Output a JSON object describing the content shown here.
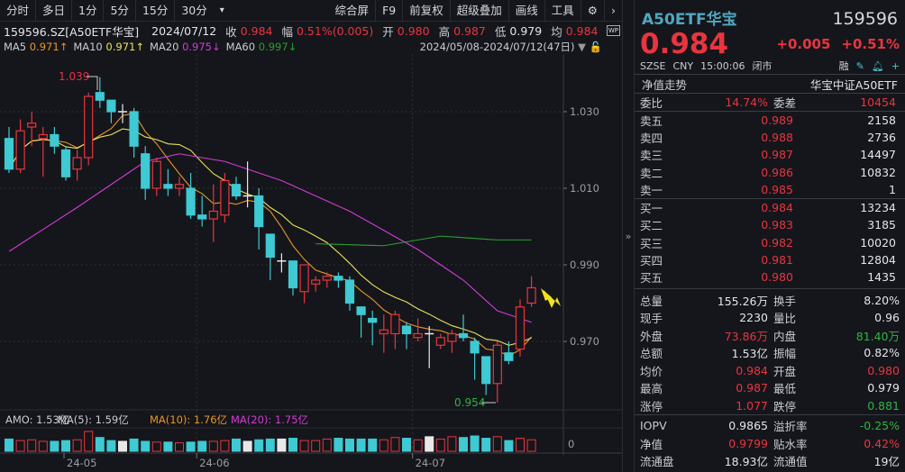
{
  "toolbar": {
    "left": [
      "分时",
      "多日",
      "1分",
      "5分",
      "15分",
      "30分"
    ],
    "dropdown": "▾",
    "right": [
      "综合屏",
      "F9",
      "前复权",
      "超级叠加",
      "画线",
      "工具"
    ]
  },
  "info": {
    "code": "159596.SZ[A50ETF华宝]",
    "date": "2024/07/12",
    "close_label": "收",
    "close": "0.984",
    "chg_label": "幅",
    "chg": "0.51%(0.005)",
    "open_label": "开",
    "open": "0.980",
    "high_label": "高",
    "high": "0.987",
    "low_label": "低",
    "low": "0.979",
    "avg_label": "均",
    "avg": "0.984"
  },
  "ma": {
    "ma5": "MA5",
    "ma5_val": "0.971↑",
    "ma10": "MA10",
    "ma10_val": "0.971↑",
    "ma20": "MA20",
    "ma20_val": "0.975↓",
    "ma60": "MA60",
    "ma60_val": "0.997↓",
    "range": "2024/05/08-2024/07/12(47日)"
  },
  "volume_header": {
    "amo": "AMO: 1.53亿",
    "ma5": "MA(5): 1.59亿",
    "ma10": "MA(10): 1.76亿",
    "ma20": "MA(20): 1.75亿",
    "axis_zero": "0"
  },
  "colors": {
    "up": "#e8353f",
    "down": "#3fc9d3",
    "ma5": "#e8962a",
    "ma10": "#e8e25c",
    "ma20": "#d23bd6",
    "ma60": "#2e9e32",
    "bg": "#15161b"
  },
  "chart_data": {
    "type": "candlestick",
    "y_ticks": [
      "1.030",
      "1.010",
      "0.990",
      "0.970"
    ],
    "x_ticks": [
      "24-05",
      "24-06",
      "24-07"
    ],
    "high_annotation": "1.039",
    "low_annotation": "0.954",
    "ohlc": [
      [
        1.023,
        1.026,
        1.014,
        1.015
      ],
      [
        1.015,
        1.028,
        1.014,
        1.025
      ],
      [
        1.026,
        1.03,
        1.021,
        1.027
      ],
      [
        1.023,
        1.026,
        1.013,
        1.024
      ],
      [
        1.024,
        1.026,
        1.019,
        1.021
      ],
      [
        1.02,
        1.021,
        1.012,
        1.013
      ],
      [
        1.015,
        1.02,
        1.012,
        1.018
      ],
      [
        1.018,
        1.035,
        1.016,
        1.034
      ],
      [
        1.035,
        1.039,
        1.031,
        1.033
      ],
      [
        1.033,
        1.033,
        1.027,
        1.03
      ],
      [
        1.03,
        1.032,
        1.027,
        1.03
      ],
      [
        1.03,
        1.031,
        1.018,
        1.021
      ],
      [
        1.019,
        1.021,
        1.007,
        1.01
      ],
      [
        1.01,
        1.018,
        1.008,
        1.017
      ],
      [
        1.011,
        1.015,
        1.008,
        1.01
      ],
      [
        1.01,
        1.013,
        1.008,
        1.011
      ],
      [
        1.01,
        1.014,
        1.002,
        1.003
      ],
      [
        1.003,
        1.008,
        1.0,
        1.002
      ],
      [
        1.002,
        1.011,
        0.996,
        1.004
      ],
      [
        1.003,
        1.014,
        1.001,
        1.012
      ],
      [
        1.011,
        1.013,
        1.007,
        1.008
      ],
      [
        1.008,
        1.017,
        1.005,
        1.008
      ],
      [
        1.008,
        1.01,
        0.994,
        1.0
      ],
      [
        0.998,
        0.998,
        0.986,
        0.992
      ],
      [
        0.991,
        0.993,
        0.988,
        0.991
      ],
      [
        0.991,
        0.991,
        0.982,
        0.984
      ],
      [
        0.983,
        0.99,
        0.98,
        0.99
      ],
      [
        0.985,
        0.987,
        0.983,
        0.986
      ],
      [
        0.986,
        0.988,
        0.984,
        0.987
      ],
      [
        0.987,
        0.988,
        0.984,
        0.986
      ],
      [
        0.986,
        0.987,
        0.978,
        0.98
      ],
      [
        0.979,
        0.979,
        0.971,
        0.977
      ],
      [
        0.976,
        0.978,
        0.969,
        0.975
      ],
      [
        0.972,
        0.977,
        0.967,
        0.973
      ],
      [
        0.972,
        0.978,
        0.968,
        0.977
      ],
      [
        0.974,
        0.975,
        0.968,
        0.972
      ],
      [
        0.971,
        0.976,
        0.97,
        0.972
      ],
      [
        0.972,
        0.974,
        0.963,
        0.972
      ],
      [
        0.969,
        0.972,
        0.968,
        0.971
      ],
      [
        0.97,
        0.973,
        0.967,
        0.972
      ],
      [
        0.972,
        0.977,
        0.97,
        0.971
      ],
      [
        0.97,
        0.971,
        0.96,
        0.967
      ],
      [
        0.966,
        0.966,
        0.956,
        0.959
      ],
      [
        0.959,
        0.97,
        0.954,
        0.969
      ],
      [
        0.967,
        0.97,
        0.964,
        0.965
      ],
      [
        0.968,
        0.981,
        0.966,
        0.979
      ],
      [
        0.98,
        0.987,
        0.979,
        0.984
      ]
    ],
    "ma20_points": [
      [
        0,
        0.9935
      ],
      [
        6,
        1.005
      ],
      [
        12,
        1.017
      ],
      [
        15,
        1.019
      ],
      [
        19,
        1.017
      ],
      [
        24,
        1.012
      ],
      [
        30,
        1.004
      ],
      [
        36,
        0.994
      ],
      [
        40,
        0.986
      ],
      [
        43,
        0.978
      ],
      [
        46,
        0.975
      ]
    ],
    "ma60_points": [
      [
        27,
        0.9955
      ],
      [
        33,
        0.995
      ],
      [
        38,
        0.9975
      ],
      [
        43,
        0.9965
      ],
      [
        46,
        0.9965
      ]
    ],
    "volume_yi": [
      1.6,
      1.4,
      1.5,
      1.3,
      1.3,
      1.4,
      1.5,
      2.6,
      1.8,
      1.4,
      1.3,
      1.6,
      1.3,
      1.2,
      1.2,
      1.1,
      1.2,
      1.3,
      1.3,
      1.4,
      1.6,
      1.3,
      1.5,
      1.6,
      1.6,
      1.7,
      1.4,
      1.4,
      1.6,
      1.7,
      1.6,
      1.6,
      1.6,
      1.5,
      1.8,
      1.7,
      1.5,
      1.9,
      1.6,
      1.9,
      1.8,
      2.0,
      1.7,
      1.9,
      1.4,
      1.7,
      1.5
    ]
  },
  "panel": {
    "name": "A50ETF华宝",
    "code": "159596",
    "price": "0.984",
    "change": "+0.005",
    "change_pct": "+0.51%",
    "exchange": "SZSE",
    "currency": "CNY",
    "time": "15:00:06",
    "status": "闭市",
    "margin": "融",
    "nav_trend": "净值走势",
    "index_name": "华宝中证A50ETF",
    "weibi_label": "委比",
    "weibi": "14.74%",
    "weicha_label": "委差",
    "weicha": "10454",
    "asks": [
      {
        "label": "卖五",
        "price": "0.989",
        "qty": "2158"
      },
      {
        "label": "卖四",
        "price": "0.988",
        "qty": "2736"
      },
      {
        "label": "卖三",
        "price": "0.987",
        "qty": "14497"
      },
      {
        "label": "卖二",
        "price": "0.986",
        "qty": "10832"
      },
      {
        "label": "卖一",
        "price": "0.985",
        "qty": "1"
      }
    ],
    "bids": [
      {
        "label": "买一",
        "price": "0.984",
        "qty": "13234"
      },
      {
        "label": "买二",
        "price": "0.983",
        "qty": "3185"
      },
      {
        "label": "买三",
        "price": "0.982",
        "qty": "10020"
      },
      {
        "label": "买四",
        "price": "0.981",
        "qty": "12804"
      },
      {
        "label": "买五",
        "price": "0.980",
        "qty": "1435"
      }
    ],
    "stats": [
      {
        "l1": "总量",
        "v1": "155.26万",
        "c1": "white",
        "l2": "换手",
        "v2": "8.20%",
        "c2": "white"
      },
      {
        "l1": "现手",
        "v1": "2230",
        "c1": "white",
        "l2": "量比",
        "v2": "0.96",
        "c2": "white"
      },
      {
        "l1": "外盘",
        "v1": "73.86万",
        "c1": "red",
        "l2": "内盘",
        "v2": "81.40万",
        "c2": "green"
      },
      {
        "l1": "总额",
        "v1": "1.53亿",
        "c1": "white",
        "l2": "振幅",
        "v2": "0.82%",
        "c2": "white"
      },
      {
        "l1": "均价",
        "v1": "0.984",
        "c1": "red",
        "l2": "开盘",
        "v2": "0.980",
        "c2": "red"
      },
      {
        "l1": "最高",
        "v1": "0.987",
        "c1": "red",
        "l2": "最低",
        "v2": "0.979",
        "c2": "white"
      },
      {
        "l1": "涨停",
        "v1": "1.077",
        "c1": "red",
        "l2": "跌停",
        "v2": "0.881",
        "c2": "green"
      }
    ],
    "etf": [
      {
        "l1": "IOPV",
        "v1": "0.9865",
        "c1": "white",
        "l2": "溢折率",
        "v2": "-0.25%",
        "c2": "green"
      },
      {
        "l1": "净值",
        "v1": "0.9799",
        "c1": "red",
        "l2": "贴水率",
        "v2": "0.42%",
        "c2": "red"
      },
      {
        "l1": "流通盘",
        "v1": "18.93亿",
        "c1": "white",
        "l2": "流通值",
        "v2": "19亿",
        "c2": "white"
      }
    ]
  }
}
